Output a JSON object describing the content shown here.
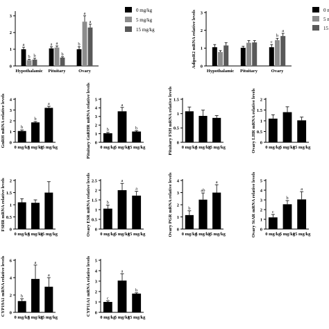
{
  "colors": {
    "dose_0": "#000000",
    "dose_5": "#8c8c8c",
    "dose_15": "#595959",
    "axis": "#000000"
  },
  "chart_data": [
    {
      "id": "p1",
      "type": "bar",
      "ylabel": "",
      "yticks": [
        0,
        1,
        2,
        3
      ],
      "ylim": [
        0,
        3.2
      ],
      "categories": [
        "Hypothalamic",
        "Pituitary",
        "Ovary"
      ],
      "legend": {
        "placement": "right",
        "entries": [
          "0 mg/kg",
          "5 mg/kg",
          "15 mg/kg"
        ]
      },
      "series": [
        {
          "name": "0 mg/kg",
          "values": [
            1.0,
            1.05,
            1.0
          ],
          "errors": [
            0.12,
            0.1,
            0.15
          ],
          "sig": [
            "a",
            "a",
            "b"
          ]
        },
        {
          "name": "5 mg/kg",
          "values": [
            0.35,
            1.1,
            2.65
          ],
          "errors": [
            0.04,
            0.1,
            0.35
          ],
          "sig": [
            "b",
            "a",
            "a"
          ]
        },
        {
          "name": "15 mg/kg",
          "values": [
            0.38,
            0.5,
            2.3
          ],
          "errors": [
            0.08,
            0.05,
            0.2
          ],
          "sig": [
            "b",
            "b",
            "a"
          ]
        }
      ]
    },
    {
      "id": "p2",
      "type": "bar",
      "ylabel": "AdipoR2 mRNA relative levels",
      "yticks": [
        0,
        1,
        2,
        3
      ],
      "ylim": [
        0,
        3
      ],
      "categories": [
        "Hypothalamic",
        "Pituitary",
        "Ovary"
      ],
      "legend": {
        "placement": "right",
        "entries": [
          "0 m",
          "5 m",
          "15"
        ]
      },
      "series": [
        {
          "name": "0 m",
          "values": [
            1.05,
            1.02,
            1.05
          ],
          "errors": [
            0.15,
            0.08,
            0.15
          ],
          "sig": [
            "",
            "",
            "c"
          ]
        },
        {
          "name": "5 m",
          "values": [
            0.78,
            1.3,
            1.45
          ],
          "errors": [
            0.08,
            0.12,
            0.1
          ],
          "sig": [
            "",
            "",
            "b"
          ]
        },
        {
          "name": "15",
          "values": [
            1.15,
            1.32,
            1.68
          ],
          "errors": [
            0.15,
            0.1,
            0.15
          ],
          "sig": [
            "",
            "",
            "a"
          ]
        }
      ]
    },
    {
      "id": "p3",
      "type": "bar",
      "ylabel": "GnRH mRNA relative levels",
      "yticks": [
        0,
        1,
        2,
        3,
        4
      ],
      "ylim": [
        0,
        4
      ],
      "categories": [
        "0 mg/kg",
        "5 mg/kg",
        "15 mg/kg"
      ],
      "values": [
        1.05,
        1.85,
        3.2
      ],
      "errors": [
        0.1,
        0.08,
        0.15
      ],
      "sig": [
        "b",
        "b",
        "a"
      ]
    },
    {
      "id": "p4",
      "type": "bar",
      "ylabel": "Pituitary GnRHR mRNA relative levels",
      "yticks": [
        0,
        1,
        2,
        3,
        4,
        5
      ],
      "ylim": [
        0,
        5
      ],
      "categories": [
        "0 mg/kg",
        "5 mg/kg",
        "15 mg/kg"
      ],
      "values": [
        1.05,
        3.6,
        1.25
      ],
      "errors": [
        0.1,
        0.45,
        0.1
      ],
      "sig": [
        "b",
        "a",
        "b"
      ]
    },
    {
      "id": "p5",
      "type": "bar",
      "ylabel": "Pituitary FSH mRNA relative levels",
      "yticks": [
        0.0,
        0.5,
        1.0,
        1.5
      ],
      "ylim": [
        0,
        1.5
      ],
      "categories": [
        "0 mg/kg",
        "5 mg/kg",
        "15 mg/kg"
      ],
      "values": [
        1.08,
        0.92,
        0.85
      ],
      "errors": [
        0.15,
        0.2,
        0.08
      ],
      "sig": [
        "",
        "",
        ""
      ]
    },
    {
      "id": "p6",
      "type": "bar",
      "ylabel": "Ovary LHR mRNA relative levels",
      "yticks": [
        0.0,
        0.5,
        1.0,
        1.5,
        2.0
      ],
      "ylim": [
        0,
        2
      ],
      "categories": [
        "0 mg/kg",
        "5 mg/kg",
        "15 mg/kg"
      ],
      "values": [
        1.1,
        1.4,
        1.02
      ],
      "errors": [
        0.18,
        0.25,
        0.15
      ],
      "sig": [
        "",
        "",
        ""
      ]
    },
    {
      "id": "p7",
      "type": "bar",
      "ylabel": "FSHR mRNA relative levels",
      "yticks": [
        0.0,
        0.5,
        1.0,
        1.5,
        2.0
      ],
      "ylim": [
        0,
        2
      ],
      "categories": [
        "0 mg/kg",
        "5 mg/kg",
        "15 mg/kg"
      ],
      "values": [
        1.1,
        1.08,
        1.5
      ],
      "errors": [
        0.15,
        0.12,
        0.45
      ],
      "sig": [
        "",
        "",
        ""
      ]
    },
    {
      "id": "p8",
      "type": "bar",
      "ylabel": "Ovary ESR mRNA relative levels",
      "yticks": [
        0.0,
        0.5,
        1.0,
        1.5,
        2.0,
        2.5
      ],
      "ylim": [
        0,
        2.5
      ],
      "categories": [
        "0 mg/kg",
        "5 mg/kg",
        "15 mg/kg"
      ],
      "values": [
        1.05,
        2.0,
        1.72
      ],
      "errors": [
        0.18,
        0.35,
        0.22
      ],
      "sig": [
        "b",
        "a",
        "a"
      ]
    },
    {
      "id": "p9",
      "type": "bar",
      "ylabel": "Ovary PGR mRNA relative levels",
      "yticks": [
        0,
        1,
        2,
        3,
        4
      ],
      "ylim": [
        0,
        4
      ],
      "categories": [
        "0 mg/kg",
        "5 mg/kg",
        "15 mg/kg"
      ],
      "values": [
        1.15,
        2.42,
        3.0
      ],
      "errors": [
        0.35,
        0.55,
        0.65
      ],
      "sig": [
        "b",
        "ab",
        "a"
      ]
    },
    {
      "id": "p10",
      "type": "bar",
      "ylabel": "Ovary StAR mRNA relative levels",
      "yticks": [
        0,
        1,
        2,
        3,
        4,
        5
      ],
      "ylim": [
        0,
        5
      ],
      "categories": [
        "0 mg/kg",
        "5 mg/kg",
        "15 mg/kg"
      ],
      "values": [
        1.2,
        2.55,
        3.05
      ],
      "errors": [
        0.3,
        0.38,
        0.8
      ],
      "sig": [
        "c",
        "b",
        "a"
      ]
    },
    {
      "id": "p11",
      "type": "bar",
      "ylabel": "CYP19A1 mRNA relative levels",
      "yticks": [
        0,
        2,
        4,
        6
      ],
      "ylim": [
        0,
        6
      ],
      "categories": [
        "0 mg/kg",
        "5 mg/kg",
        "15 mg/kg"
      ],
      "values": [
        1.3,
        3.85,
        2.95
      ],
      "errors": [
        0.25,
        1.6,
        1.05
      ],
      "sig": [
        "b",
        "a",
        "a"
      ]
    },
    {
      "id": "p12",
      "type": "bar",
      "ylabel": "CYP11A1 mRNA relative levels",
      "yticks": [
        0,
        1,
        2,
        3,
        4,
        5
      ],
      "ylim": [
        0,
        5
      ],
      "categories": [
        "0 mg/kg",
        "5 mg/kg",
        "15 mg/kg"
      ],
      "values": [
        1.0,
        3.05,
        1.8
      ],
      "errors": [
        0.1,
        0.65,
        0.08
      ],
      "sig": [
        "c",
        "a",
        "b"
      ]
    }
  ]
}
